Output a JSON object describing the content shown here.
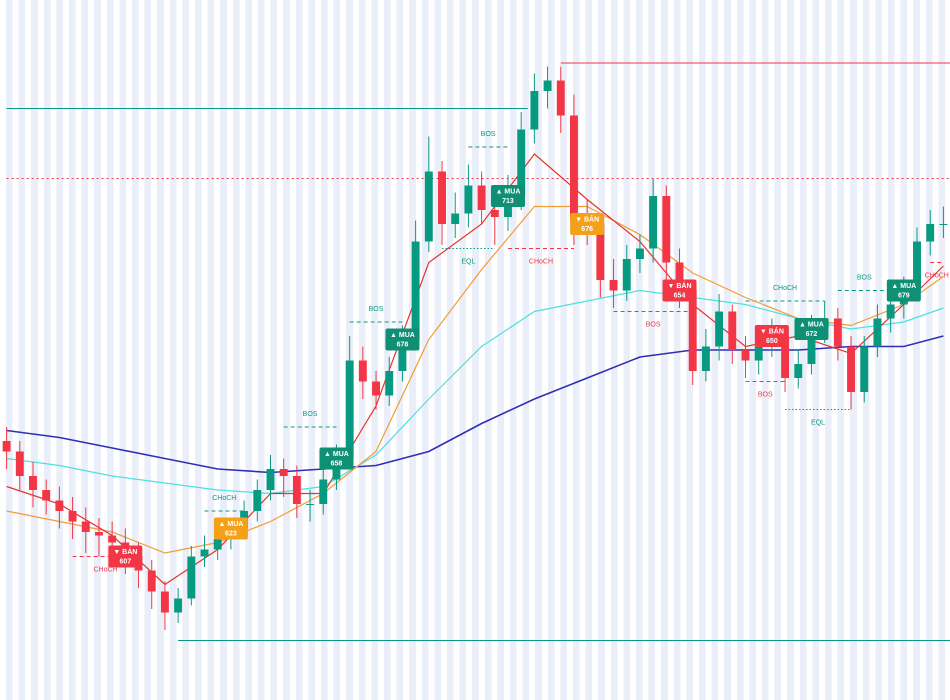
{
  "chart_data": {
    "type": "candlestick",
    "xlim": [
      -0.5,
      71.5
    ],
    "ylim": [
      560,
      760
    ],
    "up_color": "#089981",
    "down_color": "#f23645",
    "open": [
      634,
      631,
      624,
      620,
      617,
      614,
      611,
      608,
      607,
      605,
      601,
      597,
      591,
      585,
      589,
      601,
      603,
      606,
      609,
      614,
      620,
      626,
      624,
      616,
      616,
      623,
      629,
      657,
      651,
      647,
      654,
      663,
      691,
      711,
      696,
      699,
      707,
      700,
      698,
      704,
      723,
      734,
      737,
      727,
      697,
      696,
      680,
      677,
      686,
      689,
      704,
      685,
      677,
      654,
      661,
      671,
      660,
      657,
      661,
      664,
      652,
      656,
      666,
      669,
      661,
      648,
      661,
      669,
      673,
      677,
      691,
      696
    ],
    "high": [
      638,
      634,
      628,
      623,
      621,
      618,
      615,
      612,
      611,
      609,
      605,
      600,
      594,
      592,
      604,
      607,
      610,
      612,
      617,
      623,
      630,
      629,
      627,
      620,
      627,
      633,
      664,
      661,
      654,
      658,
      667,
      697,
      721,
      714,
      705,
      713,
      711,
      705,
      710,
      728,
      739,
      741,
      741,
      733,
      703,
      699,
      686,
      690,
      693,
      709,
      707,
      689,
      680,
      666,
      676,
      673,
      664,
      665,
      669,
      667,
      660,
      670,
      674,
      672,
      664,
      664,
      673,
      677,
      681,
      695,
      700,
      701
    ],
    "low": [
      626,
      620,
      615,
      613,
      609,
      606,
      602,
      601,
      600,
      596,
      592,
      586,
      580,
      582,
      587,
      598,
      600,
      603,
      606,
      611,
      617,
      618,
      612,
      611,
      613,
      620,
      626,
      646,
      643,
      644,
      651,
      660,
      688,
      690,
      692,
      695,
      696,
      690,
      694,
      700,
      719,
      729,
      722,
      690,
      690,
      675,
      672,
      674,
      682,
      685,
      680,
      672,
      650,
      651,
      657,
      656,
      652,
      653,
      658,
      648,
      649,
      653,
      662,
      657,
      643,
      645,
      658,
      665,
      669,
      674,
      687,
      692
    ],
    "close": [
      631,
      624,
      620,
      617,
      614,
      611,
      608,
      607,
      605,
      601,
      597,
      591,
      585,
      589,
      601,
      603,
      606,
      609,
      614,
      620,
      626,
      624,
      616,
      616,
      623,
      629,
      657,
      651,
      647,
      654,
      663,
      691,
      711,
      696,
      699,
      707,
      700,
      698,
      704,
      723,
      734,
      737,
      727,
      697,
      696,
      680,
      677,
      686,
      689,
      704,
      685,
      677,
      654,
      661,
      671,
      660,
      657,
      661,
      664,
      652,
      656,
      666,
      669,
      661,
      648,
      661,
      669,
      673,
      677,
      691,
      696,
      696
    ],
    "lines": [
      {
        "color": "#2f2fb5",
        "x": [
          0,
          4,
          8,
          12,
          16,
          20,
          24,
          28,
          32,
          36,
          40,
          44,
          48,
          52,
          56,
          60,
          64,
          68,
          71
        ],
        "values": [
          637,
          635,
          632,
          629,
          626,
          625,
          626,
          627,
          631,
          639,
          646,
          652,
          658,
          660,
          660,
          660,
          661,
          661,
          664
        ]
      },
      {
        "color": "#4de0e0",
        "x": [
          0,
          4,
          8,
          12,
          16,
          20,
          24,
          28,
          32,
          36,
          40,
          44,
          48,
          52,
          56,
          60,
          64,
          68,
          71
        ],
        "values": [
          629,
          627,
          624,
          622,
          620,
          619,
          621,
          630,
          646,
          661,
          671,
          674,
          677,
          675,
          673,
          669,
          666,
          668,
          672
        ]
      },
      {
        "color": "#f39c33",
        "x": [
          0,
          4,
          8,
          12,
          16,
          20,
          24,
          28,
          32,
          36,
          40,
          44,
          48,
          52,
          56,
          60,
          64,
          68,
          71
        ],
        "values": [
          614,
          611,
          608,
          602,
          605,
          611,
          619,
          631,
          663,
          683,
          701,
          701,
          693,
          682,
          675,
          669,
          667,
          673,
          681
        ]
      },
      {
        "color": "#e5322d",
        "x": [
          0,
          4,
          8,
          12,
          16,
          20,
          24,
          28,
          32,
          36,
          40,
          44,
          48,
          52,
          56,
          60,
          64,
          68,
          71
        ],
        "values": [
          621,
          616,
          607,
          593,
          603,
          619,
          619,
          644,
          685,
          696,
          716,
          703,
          691,
          673,
          661,
          664,
          659,
          673,
          684
        ]
      }
    ],
    "levels": [
      {
        "value": 729,
        "from": 0,
        "to": 39,
        "color": "#089981"
      },
      {
        "value": 742,
        "from": 42,
        "to": 71,
        "color": "#f23645"
      },
      {
        "value": 577,
        "from": 13,
        "to": 71,
        "color": "#089981"
      },
      {
        "value": 709,
        "from": 0,
        "to": 71,
        "color": "#f23645",
        "style": "dotted"
      }
    ],
    "structures": [
      {
        "text": "CHoCH",
        "value": 601,
        "from": 5,
        "to": 10,
        "color": "#f23645",
        "style": "dashed"
      },
      {
        "text": "CHoCH",
        "value": 614,
        "from": 15,
        "to": 18,
        "color": "#089981",
        "style": "dashed"
      },
      {
        "text": "BOS",
        "value": 638,
        "from": 21,
        "to": 25,
        "color": "#089981",
        "style": "dashed"
      },
      {
        "text": "BOS",
        "value": 668,
        "from": 26,
        "to": 30,
        "color": "#089981",
        "style": "dashed"
      },
      {
        "text": "BOS",
        "value": 718,
        "from": 35,
        "to": 38,
        "color": "#089981",
        "style": "dashed"
      },
      {
        "text": "EQL",
        "value": 689,
        "from": 33,
        "to": 37,
        "color": "#089981",
        "style": "dotted"
      },
      {
        "text": "CHoCH",
        "value": 689,
        "from": 38,
        "to": 43,
        "color": "#f23645",
        "style": "dashed"
      },
      {
        "text": "BOS",
        "value": 671,
        "from": 46,
        "to": 52,
        "color": "#f23645",
        "style": "dashed"
      },
      {
        "text": "BOS",
        "value": 651,
        "from": 56,
        "to": 59,
        "color": "#f23645",
        "style": "dashed"
      },
      {
        "text": "CHoCH",
        "value": 674,
        "from": 56,
        "to": 62,
        "color": "#089981",
        "style": "dashed"
      },
      {
        "text": "EQL",
        "value": 643,
        "from": 59,
        "to": 64,
        "color": "#089981",
        "style": "dotted"
      },
      {
        "text": "BOS",
        "value": 677,
        "from": 63,
        "to": 67,
        "color": "#089981",
        "style": "dashed"
      },
      {
        "text": "CHoCH",
        "value": 685,
        "from": 70,
        "to": 71,
        "color": "#f23645",
        "style": "dashed"
      }
    ],
    "signals": [
      {
        "label": "▼ BÁN",
        "value": 607,
        "index": 9,
        "color": "#f23645"
      },
      {
        "label": "▲ MUA",
        "value": 623,
        "index": 17,
        "color": "#f5a019"
      },
      {
        "label": "▲ MUA",
        "value": 658,
        "index": 25,
        "color": "#0f8f74"
      },
      {
        "label": "▲ MUA",
        "value": 678,
        "index": 30,
        "color": "#0f8f74"
      },
      {
        "label": "▲ MUA",
        "value": 713,
        "index": 38,
        "color": "#0f8f74"
      },
      {
        "label": "▼ BÁN",
        "value": 676,
        "index": 44,
        "color": "#f5a019"
      },
      {
        "label": "▼ BÁN",
        "value": 654,
        "index": 51,
        "color": "#f23645"
      },
      {
        "label": "▼ BÁN",
        "value": 650,
        "index": 58,
        "color": "#f23645"
      },
      {
        "label": "▲ MUA",
        "value": 672,
        "index": 61,
        "color": "#0f8f74"
      },
      {
        "label": "▲ MUA",
        "value": 679,
        "index": 68,
        "color": "#0f8f74"
      }
    ]
  }
}
